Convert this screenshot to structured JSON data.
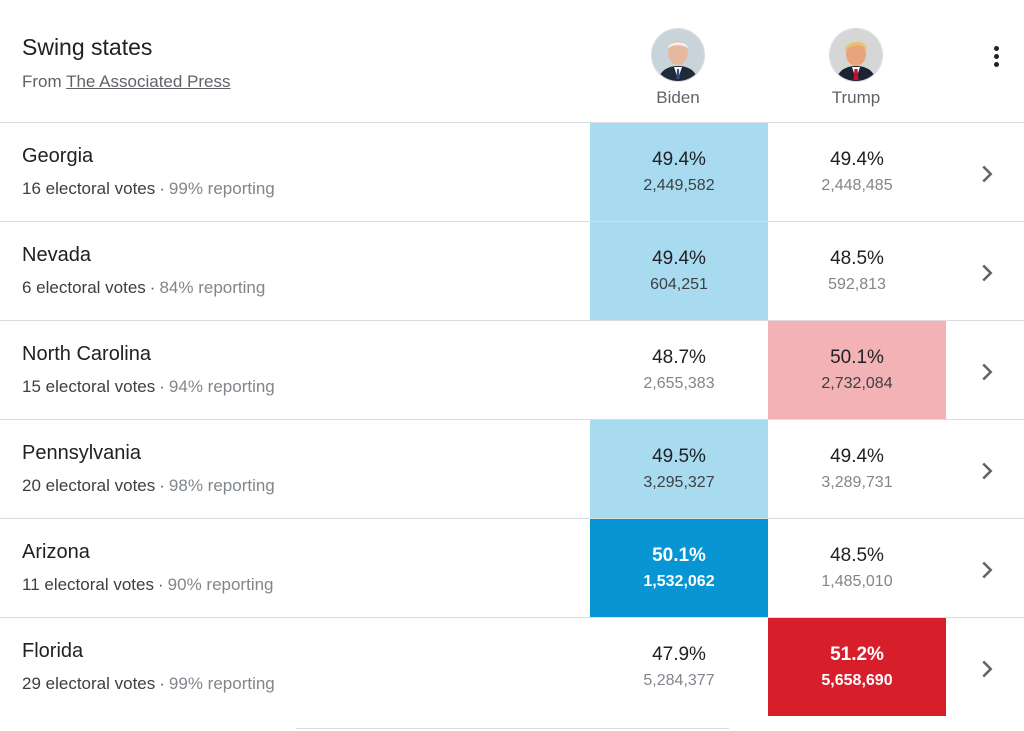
{
  "header": {
    "title": "Swing states",
    "source_prefix": "From",
    "source_link": "The Associated Press"
  },
  "candidates": [
    {
      "name": "Biden",
      "avatar_icon": "biden-portrait"
    },
    {
      "name": "Trump",
      "avatar_icon": "trump-portrait"
    }
  ],
  "menu_icon": "more-vert-icon",
  "colors": {
    "biden_light": "#a8daf0",
    "biden_strong": "#0795d3",
    "trump_light": "#f3b2b5",
    "trump_strong": "#d71f2c"
  },
  "states": [
    {
      "name": "Georgia",
      "electoral": "16 electoral votes",
      "reporting": "99% reporting",
      "biden_pct": "49.4%",
      "biden_votes": "2,449,582",
      "trump_pct": "49.4%",
      "trump_votes": "2,448,485",
      "leader": "biden",
      "strength": "light"
    },
    {
      "name": "Nevada",
      "electoral": "6 electoral votes",
      "reporting": "84% reporting",
      "biden_pct": "49.4%",
      "biden_votes": "604,251",
      "trump_pct": "48.5%",
      "trump_votes": "592,813",
      "leader": "biden",
      "strength": "light"
    },
    {
      "name": "North Carolina",
      "electoral": "15 electoral votes",
      "reporting": "94% reporting",
      "biden_pct": "48.7%",
      "biden_votes": "2,655,383",
      "trump_pct": "50.1%",
      "trump_votes": "2,732,084",
      "leader": "trump",
      "strength": "light"
    },
    {
      "name": "Pennsylvania",
      "electoral": "20 electoral votes",
      "reporting": "98% reporting",
      "biden_pct": "49.5%",
      "biden_votes": "3,295,327",
      "trump_pct": "49.4%",
      "trump_votes": "3,289,731",
      "leader": "biden",
      "strength": "light"
    },
    {
      "name": "Arizona",
      "electoral": "11 electoral votes",
      "reporting": "90% reporting",
      "biden_pct": "50.1%",
      "biden_votes": "1,532,062",
      "trump_pct": "48.5%",
      "trump_votes": "1,485,010",
      "leader": "biden",
      "strength": "strong"
    },
    {
      "name": "Florida",
      "electoral": "29 electoral votes",
      "reporting": "99% reporting",
      "biden_pct": "47.9%",
      "biden_votes": "5,284,377",
      "trump_pct": "51.2%",
      "trump_votes": "5,658,690",
      "leader": "trump",
      "strength": "strong"
    }
  ]
}
